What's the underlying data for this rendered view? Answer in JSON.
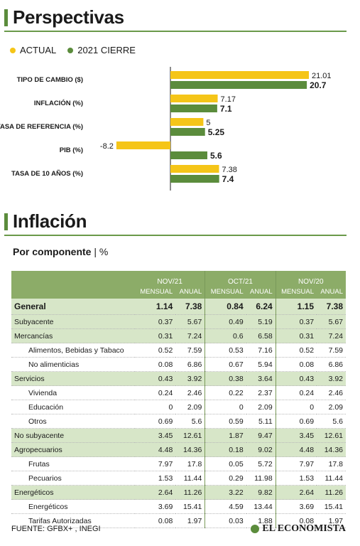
{
  "section1": {
    "title": "Perspectivas"
  },
  "legend": [
    {
      "label": "ACTUAL",
      "color": "#f5c518"
    },
    {
      "label": "2021 CIERRE",
      "color": "#5b8c3c"
    }
  ],
  "chart_data": {
    "type": "bar",
    "orientation": "horizontal",
    "title": "Perspectivas",
    "categories": [
      "TIPO DE CAMBIO ($)",
      "INFLACIÓN (%)",
      "TASA DE REFERENCIA (%)",
      "PIB  (%)",
      "TASA DE 10 AÑOS (%)"
    ],
    "series": [
      {
        "name": "ACTUAL",
        "color": "#f5c518",
        "values": [
          21.01,
          7.17,
          5,
          -8.2,
          7.38
        ],
        "labels": [
          "21.01",
          "7.17",
          "5",
          "-8.2",
          "7.38"
        ]
      },
      {
        "name": "2021 CIERRE",
        "color": "#5b8c3c",
        "values": [
          20.7,
          7.1,
          5.25,
          5.6,
          7.4
        ],
        "labels": [
          "20.7",
          "7.1",
          "5.25",
          "5.6",
          "7.4"
        ]
      }
    ],
    "xlim": [
      -8.2,
      21.01
    ],
    "grid": false,
    "legend_position": "top-left"
  },
  "section2": {
    "title": "Inflación",
    "subtitle": "Por componente",
    "unit": "| %"
  },
  "table": {
    "groups": [
      "NOV/21",
      "OCT/21",
      "NOV/20"
    ],
    "subcols": [
      "MENSUAL",
      "ANUAL"
    ],
    "rows": [
      {
        "label": "General",
        "style": "general",
        "indent": 0,
        "values": [
          "1.14",
          "7.38",
          "0.84",
          "6.24",
          "1.15",
          "7.38"
        ]
      },
      {
        "label": "Subyacente",
        "style": "shade",
        "indent": 0,
        "values": [
          "0.37",
          "5.67",
          "0.49",
          "5.19",
          "0.37",
          "5.67"
        ]
      },
      {
        "label": "Mercancías",
        "style": "shade",
        "indent": 0,
        "values": [
          "0.31",
          "7.24",
          "0.6",
          "6.58",
          "0.31",
          "7.24"
        ]
      },
      {
        "label": "Alimentos, Bebidas y Tabaco",
        "style": "plain",
        "indent": 1,
        "values": [
          "0.52",
          "7.59",
          "0.53",
          "7.16",
          "0.52",
          "7.59"
        ]
      },
      {
        "label": "No alimenticias",
        "style": "plain",
        "indent": 1,
        "values": [
          "0.08",
          "6.86",
          "0.67",
          "5.94",
          "0.08",
          "6.86"
        ]
      },
      {
        "label": "Servicios",
        "style": "shade",
        "indent": 0,
        "values": [
          "0.43",
          "3.92",
          "0.38",
          "3.64",
          "0.43",
          "3.92"
        ]
      },
      {
        "label": "Vivienda",
        "style": "plain",
        "indent": 1,
        "values": [
          "0.24",
          "2.46",
          "0.22",
          "2.37",
          "0.24",
          "2.46"
        ]
      },
      {
        "label": "Educación",
        "style": "plain",
        "indent": 1,
        "values": [
          "0",
          "2.09",
          "0",
          "2.09",
          "0",
          "2.09"
        ]
      },
      {
        "label": "Otros",
        "style": "plain",
        "indent": 1,
        "values": [
          "0.69",
          "5.6",
          "0.59",
          "5.11",
          "0.69",
          "5.6"
        ]
      },
      {
        "label": "No subyacente",
        "style": "shade",
        "indent": 0,
        "values": [
          "3.45",
          "12.61",
          "1.87",
          "9.47",
          "3.45",
          "12.61"
        ]
      },
      {
        "label": "Agropecuarios",
        "style": "shade",
        "indent": 0,
        "values": [
          "4.48",
          "14.36",
          "0.18",
          "9.02",
          "4.48",
          "14.36"
        ]
      },
      {
        "label": "Frutas",
        "style": "plain",
        "indent": 1,
        "values": [
          "7.97",
          "17.8",
          "0.05",
          "5.72",
          "7.97",
          "17.8"
        ]
      },
      {
        "label": "Pecuarios",
        "style": "plain",
        "indent": 1,
        "values": [
          "1.53",
          "11.44",
          "0.29",
          "11.98",
          "1.53",
          "11.44"
        ]
      },
      {
        "label": "Energéticos",
        "style": "shade",
        "indent": 0,
        "values": [
          "2.64",
          "11.26",
          "3.22",
          "9.82",
          "2.64",
          "11.26"
        ]
      },
      {
        "label": "Energéticos",
        "style": "plain",
        "indent": 1,
        "values": [
          "3.69",
          "15.41",
          "4.59",
          "13.44",
          "3.69",
          "15.41"
        ]
      },
      {
        "label": "Tarifas Autorizadas",
        "style": "plain",
        "indent": 1,
        "values": [
          "0.08",
          "1.97",
          "0.03",
          "1.88",
          "0.08",
          "1.97"
        ]
      }
    ]
  },
  "footer": {
    "source": "FUENTE: GFBX+ , INEGI",
    "brand": "EL ECONOMISTA"
  }
}
